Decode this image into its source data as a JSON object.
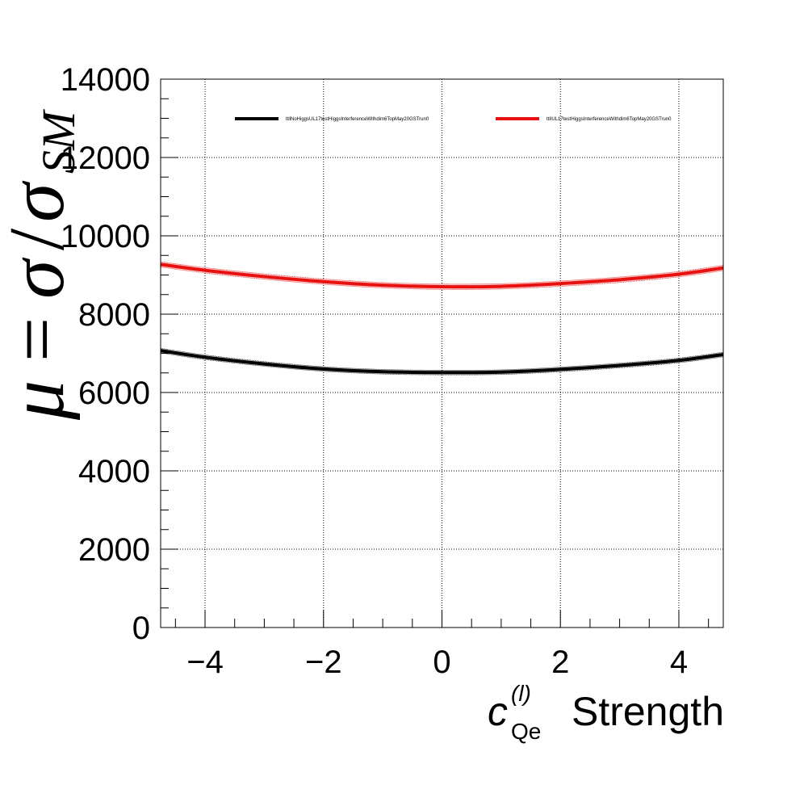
{
  "chart_data": {
    "type": "line",
    "xlabel": {
      "symbol": "c",
      "superscript": "(l)",
      "subscript": "Qe",
      "text": "Strength"
    },
    "ylabel": {
      "mu": "μ",
      "equals": "=",
      "sigma_num": "σ",
      "slash": "/",
      "sigma_den": "σ",
      "subscript": "SM"
    },
    "xlim": [
      -4.75,
      4.75
    ],
    "ylim": [
      0,
      14000
    ],
    "x_ticks": [
      -4,
      -2,
      0,
      2,
      4
    ],
    "x_tick_labels": [
      "−4",
      "−2",
      "0",
      "2",
      "4"
    ],
    "y_ticks": [
      0,
      2000,
      4000,
      6000,
      8000,
      10000,
      12000,
      14000
    ],
    "y_tick_labels": [
      "0",
      "2000",
      "4000",
      "6000",
      "8000",
      "10000",
      "12000",
      "14000"
    ],
    "grid": true,
    "legend_position": "top",
    "series": [
      {
        "name": "ttllNoHiggsUL17testHiggsInterferenceWithdim6TopMay20GSTrun0",
        "color": "#000000",
        "x": [
          -4.75,
          -4,
          -3,
          -2,
          -1,
          0,
          1,
          2,
          3,
          4,
          4.75
        ],
        "y": [
          7070,
          6900,
          6730,
          6600,
          6530,
          6510,
          6520,
          6590,
          6690,
          6820,
          6970
        ],
        "band": 60
      },
      {
        "name": "ttlIUL17testHiggsInterferenceWithdim6TopMay20GSTrun0",
        "color": "#e8110f",
        "x": [
          -4.75,
          -4,
          -3,
          -2,
          -1,
          0,
          1,
          2,
          3,
          4,
          4.75
        ],
        "y": [
          9270,
          9120,
          8960,
          8830,
          8740,
          8700,
          8710,
          8780,
          8880,
          9020,
          9180
        ],
        "band": 70
      }
    ]
  }
}
